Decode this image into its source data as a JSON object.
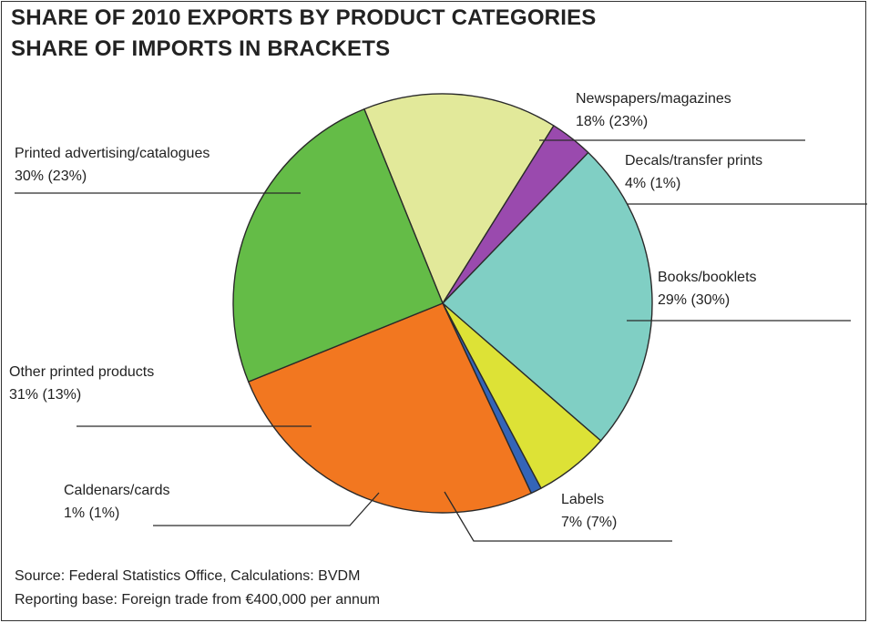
{
  "header": {
    "title_line1": "SHARE OF 2010 EXPORTS BY PRODUCT CATEGORIES",
    "title_line2": "SHARE OF IMPORTS IN BRACKETS"
  },
  "footer": {
    "source": "Source: Federal Statistics Office, Calculations: BVDM",
    "reporting_base": "Reporting base: Foreign trade from €400,000 per annum"
  },
  "chart_data": {
    "type": "pie",
    "title": "SHARE OF 2010 EXPORTS BY PRODUCT CATEGORIES",
    "subtitle": "SHARE OF IMPORTS IN BRACKETS",
    "grid": false,
    "legend": "callout labels",
    "slices": [
      {
        "name": "Newspapers/magazines",
        "export_pct": 18,
        "import_pct": 23,
        "label": "18% (23%)",
        "color": "#e2e99a"
      },
      {
        "name": "Decals/transfer prints",
        "export_pct": 4,
        "import_pct": 1,
        "label": "4% (1%)",
        "color": "#9a4aae"
      },
      {
        "name": "Books/booklets",
        "export_pct": 29,
        "import_pct": 30,
        "label": "29% (30%)",
        "color": "#80cfc4"
      },
      {
        "name": "Labels",
        "export_pct": 7,
        "import_pct": 7,
        "label": "7% (7%)",
        "color": "#dde236"
      },
      {
        "name": "Caldenars/cards",
        "export_pct": 1,
        "import_pct": 1,
        "label": "1% (1%)",
        "color": "#3465b8"
      },
      {
        "name": "Other printed products",
        "export_pct": 31,
        "import_pct": 13,
        "label": "31% (13%)",
        "color": "#f27720"
      },
      {
        "name": "Printed advertising/catalogues",
        "export_pct": 30,
        "import_pct": 23,
        "label": "30% (23%)",
        "color": "#64bc47"
      }
    ]
  }
}
